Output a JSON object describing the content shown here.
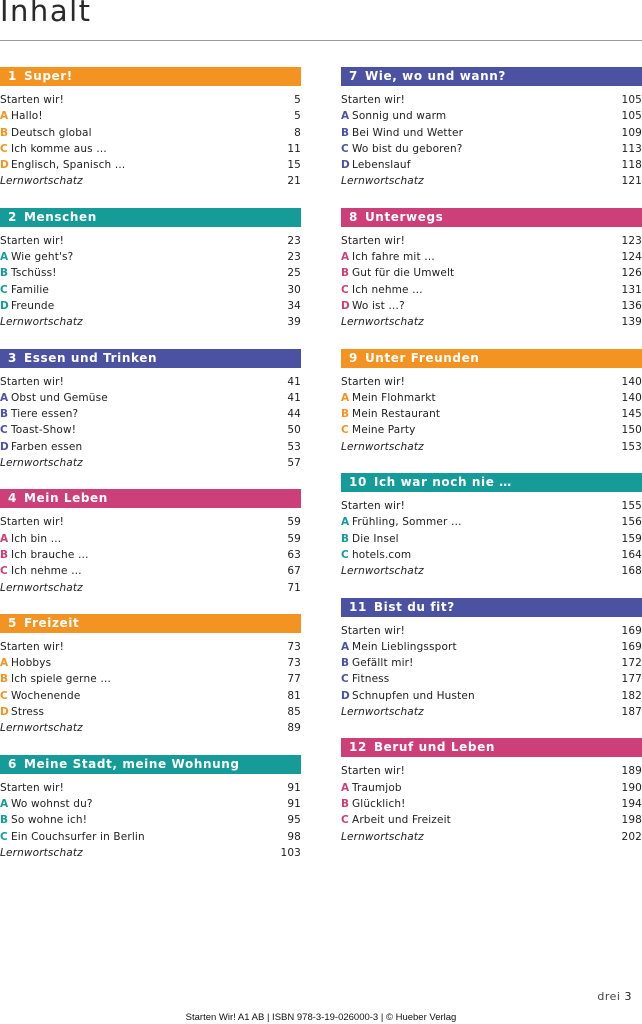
{
  "title": "Inhalt",
  "colors": {
    "orange": "#f39321",
    "teal": "#159b98",
    "navy": "#4b52a2",
    "pink": "#cc3f79"
  },
  "columns": [
    {
      "sections": [
        {
          "num": "1",
          "title": "Super!",
          "color": "orange",
          "entries": [
            {
              "letter": "",
              "text": "Starten wir!",
              "page": "5"
            },
            {
              "letter": "A",
              "text": "Hallo!",
              "page": "5"
            },
            {
              "letter": "B",
              "text": "Deutsch global",
              "page": "8"
            },
            {
              "letter": "C",
              "text": "Ich komme aus …",
              "page": "11"
            },
            {
              "letter": "D",
              "text": "Englisch, Spanisch …",
              "page": "15"
            },
            {
              "letter": "",
              "text": "Lernwortschatz",
              "page": "21",
              "lern": true
            }
          ]
        },
        {
          "num": "2",
          "title": "Menschen",
          "color": "teal",
          "entries": [
            {
              "letter": "",
              "text": "Starten wir!",
              "page": "23"
            },
            {
              "letter": "A",
              "text": "Wie geht's?",
              "page": "23"
            },
            {
              "letter": "B",
              "text": "Tschüss!",
              "page": "25"
            },
            {
              "letter": "C",
              "text": "Familie",
              "page": "30"
            },
            {
              "letter": "D",
              "text": "Freunde",
              "page": "34"
            },
            {
              "letter": "",
              "text": "Lernwortschatz",
              "page": "39",
              "lern": true
            }
          ]
        },
        {
          "num": "3",
          "title": "Essen und Trinken",
          "color": "navy",
          "entries": [
            {
              "letter": "",
              "text": "Starten wir!",
              "page": "41"
            },
            {
              "letter": "A",
              "text": "Obst und Gemüse",
              "page": "41"
            },
            {
              "letter": "B",
              "text": "Tiere essen?",
              "page": "44"
            },
            {
              "letter": "C",
              "text": "Toast-Show!",
              "page": "50"
            },
            {
              "letter": "D",
              "text": "Farben essen",
              "page": "53"
            },
            {
              "letter": "",
              "text": "Lernwortschatz",
              "page": "57",
              "lern": true
            }
          ]
        },
        {
          "num": "4",
          "title": "Mein Leben",
          "color": "pink",
          "entries": [
            {
              "letter": "",
              "text": "Starten wir!",
              "page": "59"
            },
            {
              "letter": "A",
              "text": "Ich bin …",
              "page": "59"
            },
            {
              "letter": "B",
              "text": "Ich brauche …",
              "page": "63"
            },
            {
              "letter": "C",
              "text": "Ich nehme …",
              "page": "67"
            },
            {
              "letter": "",
              "text": "Lernwortschatz",
              "page": "71",
              "lern": true
            }
          ]
        },
        {
          "num": "5",
          "title": "Freizeit",
          "color": "orange",
          "entries": [
            {
              "letter": "",
              "text": "Starten wir!",
              "page": "73"
            },
            {
              "letter": "A",
              "text": "Hobbys",
              "page": "73"
            },
            {
              "letter": "B",
              "text": "Ich spiele gerne …",
              "page": "77"
            },
            {
              "letter": "C",
              "text": "Wochenende",
              "page": "81"
            },
            {
              "letter": "D",
              "text": "Stress",
              "page": "85"
            },
            {
              "letter": "",
              "text": "Lernwortschatz",
              "page": "89",
              "lern": true
            }
          ]
        },
        {
          "num": "6",
          "title": "Meine Stadt, meine Wohnung",
          "color": "teal",
          "entries": [
            {
              "letter": "",
              "text": "Starten wir!",
              "page": "91"
            },
            {
              "letter": "A",
              "text": "Wo wohnst du?",
              "page": "91"
            },
            {
              "letter": "B",
              "text": "So wohne ich!",
              "page": "95"
            },
            {
              "letter": "C",
              "text": "Ein Couchsurfer in Berlin",
              "page": "98"
            },
            {
              "letter": "",
              "text": "Lernwortschatz",
              "page": "103",
              "lern": true
            }
          ]
        }
      ]
    },
    {
      "sections": [
        {
          "num": "7",
          "title": "Wie, wo und wann?",
          "color": "navy",
          "entries": [
            {
              "letter": "",
              "text": "Starten wir!",
              "page": "105"
            },
            {
              "letter": "A",
              "text": "Sonnig und warm",
              "page": "105"
            },
            {
              "letter": "B",
              "text": "Bei Wind und Wetter",
              "page": "109"
            },
            {
              "letter": "C",
              "text": "Wo bist du geboren?",
              "page": "113"
            },
            {
              "letter": "D",
              "text": "Lebenslauf",
              "page": "118"
            },
            {
              "letter": "",
              "text": "Lernwortschatz",
              "page": "121",
              "lern": true
            }
          ]
        },
        {
          "num": "8",
          "title": "Unterwegs",
          "color": "pink",
          "entries": [
            {
              "letter": "",
              "text": "Starten wir!",
              "page": "123"
            },
            {
              "letter": "A",
              "text": "Ich fahre mit …",
              "page": "124"
            },
            {
              "letter": "B",
              "text": "Gut für die Umwelt",
              "page": "126"
            },
            {
              "letter": "C",
              "text": "Ich nehme …",
              "page": "131"
            },
            {
              "letter": "D",
              "text": "Wo ist …?",
              "page": "136"
            },
            {
              "letter": "",
              "text": "Lernwortschatz",
              "page": "139",
              "lern": true
            }
          ]
        },
        {
          "num": "9",
          "title": "Unter Freunden",
          "color": "orange",
          "entries": [
            {
              "letter": "",
              "text": "Starten wir!",
              "page": "140"
            },
            {
              "letter": "A",
              "text": "Mein Flohmarkt",
              "page": "140"
            },
            {
              "letter": "B",
              "text": "Mein Restaurant",
              "page": "145"
            },
            {
              "letter": "C",
              "text": "Meine Party",
              "page": "150"
            },
            {
              "letter": "",
              "text": "Lernwortschatz",
              "page": "153",
              "lern": true
            }
          ]
        },
        {
          "num": "10",
          "title": "Ich war noch nie …",
          "color": "teal",
          "entries": [
            {
              "letter": "",
              "text": "Starten wir!",
              "page": "155"
            },
            {
              "letter": "A",
              "text": "Frühling, Sommer …",
              "page": "156"
            },
            {
              "letter": "B",
              "text": "Die Insel",
              "page": "159"
            },
            {
              "letter": "C",
              "text": "hotels.com",
              "page": "164"
            },
            {
              "letter": "",
              "text": "Lernwortschatz",
              "page": "168",
              "lern": true
            }
          ]
        },
        {
          "num": "11",
          "title": "Bist du fit?",
          "color": "navy",
          "entries": [
            {
              "letter": "",
              "text": "Starten wir!",
              "page": "169"
            },
            {
              "letter": "A",
              "text": "Mein Lieblingssport",
              "page": "169"
            },
            {
              "letter": "B",
              "text": "Gefällt mir!",
              "page": "172"
            },
            {
              "letter": "C",
              "text": "Fitness",
              "page": "177"
            },
            {
              "letter": "D",
              "text": "Schnupfen und Husten",
              "page": "182"
            },
            {
              "letter": "",
              "text": "Lernwortschatz",
              "page": "187",
              "lern": true
            }
          ]
        },
        {
          "num": "12",
          "title": "Beruf und Leben",
          "color": "pink",
          "entries": [
            {
              "letter": "",
              "text": "Starten wir!",
              "page": "189"
            },
            {
              "letter": "A",
              "text": "Traumjob",
              "page": "190"
            },
            {
              "letter": "B",
              "text": "Glücklich!",
              "page": "194"
            },
            {
              "letter": "C",
              "text": "Arbeit und Freizeit",
              "page": "198"
            },
            {
              "letter": "",
              "text": "Lernwortschatz",
              "page": "202",
              "lern": true
            }
          ]
        }
      ]
    }
  ],
  "folio": {
    "word": "drei",
    "number": "3"
  },
  "footer": "Starten Wir! A1 AB | ISBN 978-3-19-026000-3 | © Hueber Verlag"
}
